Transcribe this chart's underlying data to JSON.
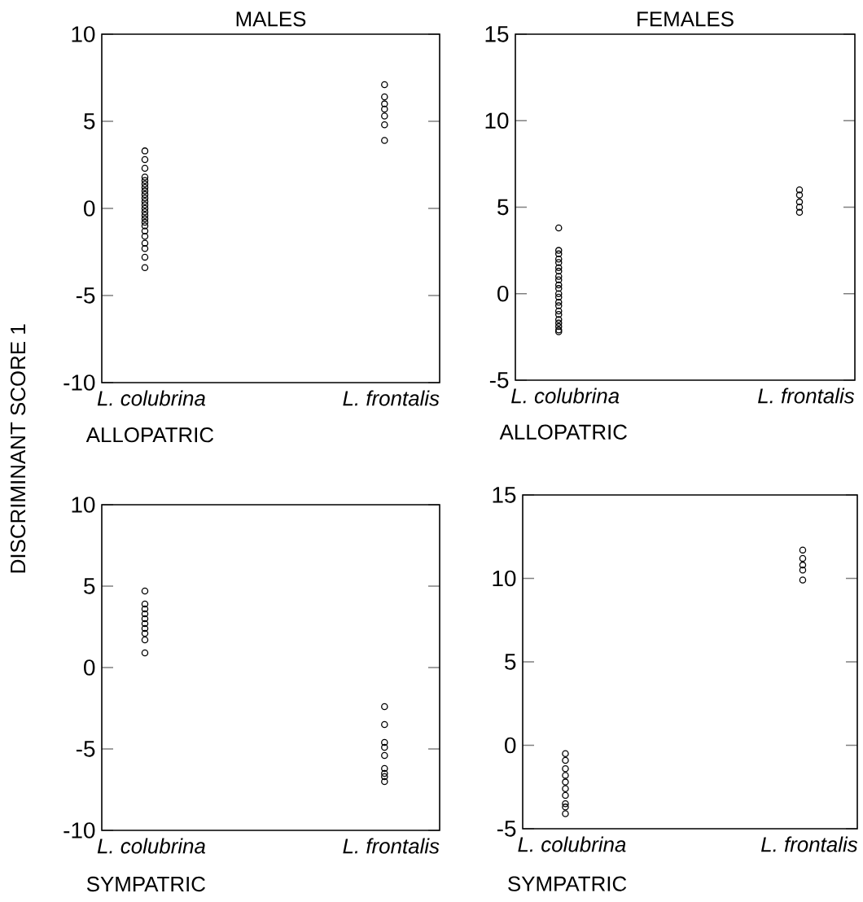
{
  "chart_data": [
    {
      "type": "scatter",
      "title": "MALES",
      "xlabel": "ALLOPATRIC",
      "ylabel": "DISCRIMINANT SCORE 1",
      "categories": [
        "L. colubrina",
        "L. frontalis"
      ],
      "ylim": [
        -10,
        10
      ],
      "yticks": [
        -10,
        -5,
        0,
        5,
        10
      ],
      "marker": "circle",
      "series": [
        {
          "color": "#000000",
          "x": [
            "L. colubrina",
            "L. colubrina",
            "L. colubrina",
            "L. colubrina",
            "L. colubrina",
            "L. colubrina",
            "L. colubrina",
            "L. colubrina",
            "L. colubrina",
            "L. colubrina",
            "L. colubrina",
            "L. colubrina",
            "L. colubrina",
            "L. colubrina",
            "L. colubrina",
            "L. colubrina",
            "L. colubrina",
            "L. colubrina",
            "L. colubrina",
            "L. colubrina",
            "L. colubrina",
            "L. colubrina",
            "L. colubrina",
            "L. colubrina"
          ],
          "values": [
            3.3,
            2.8,
            2.3,
            1.8,
            1.6,
            1.4,
            1.2,
            1.0,
            0.8,
            0.6,
            0.4,
            0.2,
            0,
            -0.2,
            -0.4,
            -0.6,
            -0.8,
            -1.0,
            -1.3,
            -1.6,
            -2.0,
            -2.3,
            -2.8,
            -3.4
          ]
        },
        {
          "color": "#000000",
          "x": [
            "L. frontalis",
            "L. frontalis",
            "L. frontalis",
            "L. frontalis",
            "L. frontalis",
            "L. frontalis",
            "L. frontalis"
          ],
          "values": [
            7.1,
            6.4,
            6.0,
            5.7,
            5.3,
            4.8,
            3.9
          ]
        }
      ]
    },
    {
      "type": "scatter",
      "title": "FEMALES",
      "xlabel": "ALLOPATRIC",
      "categories": [
        "L. colubrina",
        "L. frontalis"
      ],
      "ylim": [
        -5,
        15
      ],
      "yticks": [
        -5,
        0,
        5,
        10,
        15
      ],
      "marker": "circle",
      "series": [
        {
          "color": "#000000",
          "x": [
            "L. colubrina",
            "L. colubrina",
            "L. colubrina",
            "L. colubrina",
            "L. colubrina",
            "L. colubrina",
            "L. colubrina",
            "L. colubrina",
            "L. colubrina",
            "L. colubrina",
            "L. colubrina",
            "L. colubrina",
            "L. colubrina",
            "L. colubrina",
            "L. colubrina",
            "L. colubrina",
            "L. colubrina",
            "L. colubrina",
            "L. colubrina",
            "L. colubrina",
            "L. colubrina",
            "L. colubrina"
          ],
          "values": [
            3.8,
            2.5,
            2.3,
            2.0,
            1.8,
            1.5,
            1.3,
            1.0,
            0.8,
            0.5,
            0.3,
            0,
            -0.2,
            -0.5,
            -0.7,
            -1.0,
            -1.2,
            -1.5,
            -1.7,
            -1.9,
            -2.1,
            -2.2
          ]
        },
        {
          "color": "#000000",
          "x": [
            "L. frontalis",
            "L. frontalis",
            "L. frontalis",
            "L. frontalis",
            "L. frontalis"
          ],
          "values": [
            6.0,
            5.7,
            5.3,
            5.0,
            4.7
          ]
        }
      ]
    },
    {
      "type": "scatter",
      "xlabel": "SYMPATRIC",
      "categories": [
        "L. colubrina",
        "L. frontalis"
      ],
      "ylim": [
        -10,
        10
      ],
      "yticks": [
        -10,
        -5,
        0,
        5,
        10
      ],
      "marker": "circle",
      "series": [
        {
          "color": "#000000",
          "x": [
            "L. colubrina",
            "L. colubrina",
            "L. colubrina",
            "L. colubrina",
            "L. colubrina",
            "L. colubrina",
            "L. colubrina",
            "L. colubrina",
            "L. colubrina",
            "L. colubrina"
          ],
          "values": [
            4.7,
            3.9,
            3.6,
            3.3,
            3.0,
            2.7,
            2.4,
            2.1,
            1.7,
            0.9
          ]
        },
        {
          "color": "#000000",
          "x": [
            "L. frontalis",
            "L. frontalis",
            "L. frontalis",
            "L. frontalis",
            "L. frontalis",
            "L. frontalis",
            "L. frontalis",
            "L. frontalis",
            "L. frontalis"
          ],
          "values": [
            -2.4,
            -3.5,
            -4.6,
            -4.9,
            -5.4,
            -6.2,
            -6.5,
            -6.7,
            -7.0
          ]
        }
      ]
    },
    {
      "type": "scatter",
      "xlabel": "SYMPATRIC",
      "categories": [
        "L. colubrina",
        "L. frontalis"
      ],
      "ylim": [
        -5,
        15
      ],
      "yticks": [
        -5,
        0,
        5,
        10,
        15
      ],
      "marker": "circle",
      "series": [
        {
          "color": "#000000",
          "x": [
            "L. colubrina",
            "L. colubrina",
            "L. colubrina",
            "L. colubrina",
            "L. colubrina",
            "L. colubrina",
            "L. colubrina",
            "L. colubrina",
            "L. colubrina",
            "L. colubrina"
          ],
          "values": [
            -0.5,
            -0.9,
            -1.4,
            -1.8,
            -2.2,
            -2.6,
            -3.0,
            -3.5,
            -3.7,
            -4.1
          ]
        },
        {
          "color": "#000000",
          "x": [
            "L. frontalis",
            "L. frontalis",
            "L. frontalis",
            "L. frontalis",
            "L. frontalis"
          ],
          "values": [
            11.7,
            11.2,
            10.8,
            10.5,
            9.9
          ]
        }
      ]
    }
  ]
}
